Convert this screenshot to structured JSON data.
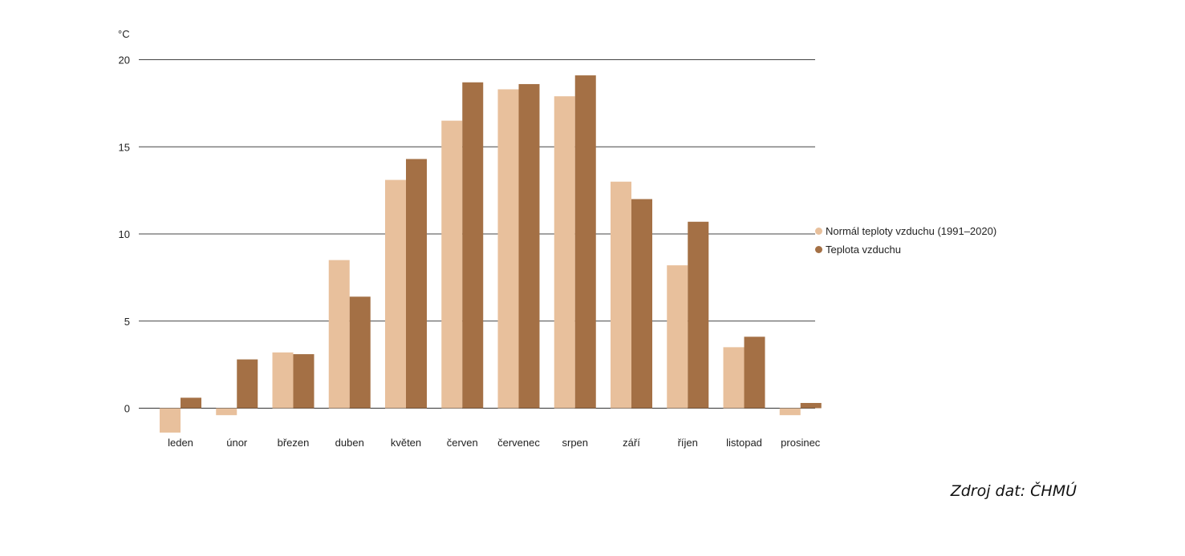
{
  "chart_data": {
    "type": "bar",
    "ylabel": "°C",
    "ylim": [
      -1.5,
      20
    ],
    "yticks": [
      0,
      5,
      10,
      15,
      20
    ],
    "grid": true,
    "legend_position": "right",
    "categories": [
      "leden",
      "únor",
      "březen",
      "duben",
      "květen",
      "červen",
      "červenec",
      "srpen",
      "září",
      "říjen",
      "listopad",
      "prosinec"
    ],
    "series": [
      {
        "name": "Normál teploty vzduchu (1991–2020)",
        "color": "#e8c09c",
        "values": [
          -1.4,
          -0.4,
          3.2,
          8.5,
          13.1,
          16.5,
          18.3,
          17.9,
          13.0,
          8.2,
          3.5,
          -0.4
        ]
      },
      {
        "name": "Teplota vzduchu",
        "color": "#a47045",
        "values": [
          0.6,
          2.8,
          3.1,
          6.4,
          14.3,
          18.7,
          18.6,
          19.1,
          12.0,
          10.7,
          4.1,
          0.3
        ]
      }
    ]
  },
  "source": "Zdroj dat: ČHMÚ"
}
